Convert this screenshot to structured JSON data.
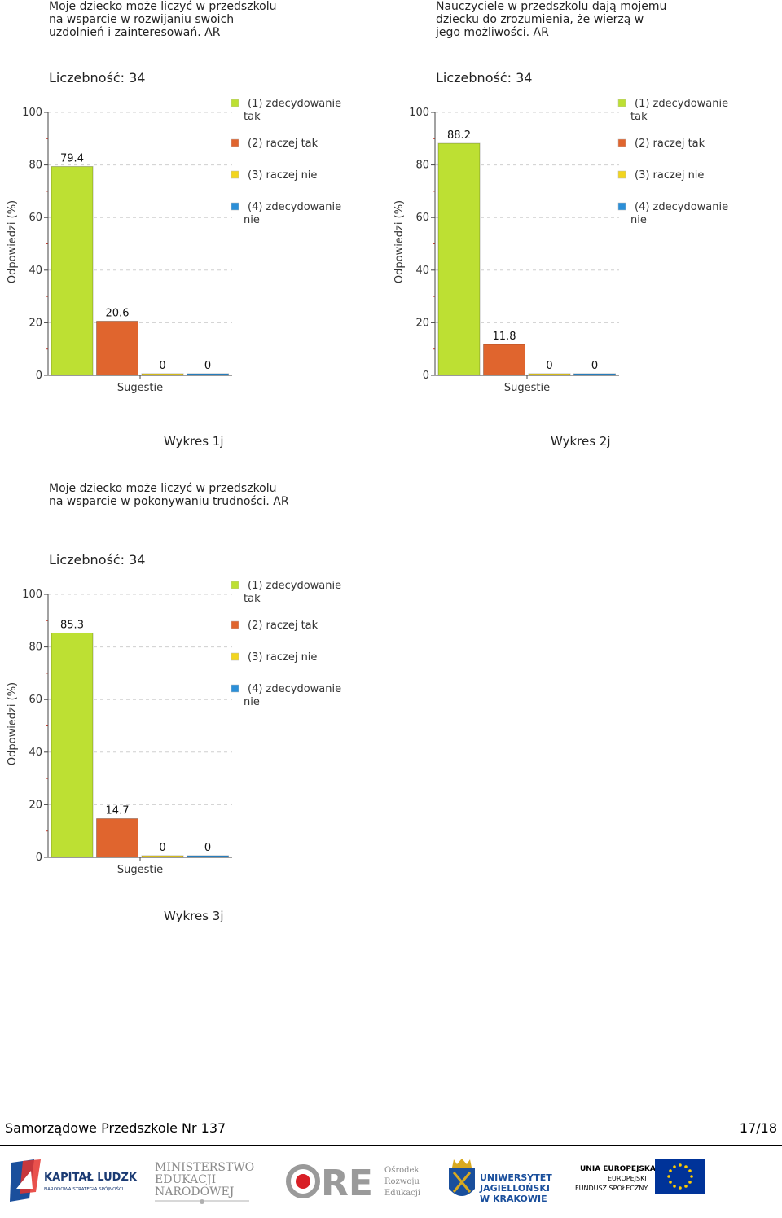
{
  "charts": [
    {
      "id": "chart1",
      "title": "Moje dziecko może liczyć w przedszkolu\nna wsparcie w rozwijaniu swoich\nuzdolnień i zainteresowań. AR",
      "count_label": "Liczebność: 34",
      "caption": "Wykres 1j"
    },
    {
      "id": "chart2",
      "title": "Nauczyciele w przedszkolu dają mojemu\ndziecku do  zrozumienia, że wierzą w\njego możliwości. AR",
      "count_label": "Liczebność: 34",
      "caption": "Wykres 2j"
    },
    {
      "id": "chart3",
      "title": "Moje dziecko może liczyć w przedszkolu\nna wsparcie w pokonywaniu trudności. AR",
      "count_label": "Liczebność: 34",
      "caption": "Wykres 3j"
    }
  ],
  "chart_data": [
    {
      "type": "bar",
      "categories": [
        "Sugestie"
      ],
      "series": [
        {
          "name": "(1) zdecydowanie tak",
          "values": [
            79.4
          ],
          "color": "#bde033"
        },
        {
          "name": "(2) raczej tak",
          "values": [
            20.6
          ],
          "color": "#e0652e"
        },
        {
          "name": "(3) raczej nie",
          "values": [
            0
          ],
          "color": "#f2d51f"
        },
        {
          "name": "(4) zdecydowanie nie",
          "values": [
            0
          ],
          "color": "#2b8fd8"
        }
      ],
      "data_labels": [
        "79.4",
        "20.6",
        "0",
        "0"
      ],
      "xlabel": "Sugestie",
      "ylabel": "Odpowiedzi (%)",
      "ylim": [
        0,
        100
      ],
      "yticks": [
        "0",
        "20",
        "40",
        "60",
        "80",
        "100"
      ],
      "grid": true,
      "legend_position": "right",
      "legend_labels": [
        [
          "(1) zdecydowanie",
          "tak"
        ],
        [
          "(2) raczej tak"
        ],
        [
          "(3) raczej nie"
        ],
        [
          "(4) zdecydowanie",
          "nie"
        ]
      ]
    },
    {
      "type": "bar",
      "categories": [
        "Sugestie"
      ],
      "series": [
        {
          "name": "(1) zdecydowanie tak",
          "values": [
            88.2
          ],
          "color": "#bde033"
        },
        {
          "name": "(2) raczej tak",
          "values": [
            11.8
          ],
          "color": "#e0652e"
        },
        {
          "name": "(3) raczej nie",
          "values": [
            0
          ],
          "color": "#f2d51f"
        },
        {
          "name": "(4) zdecydowanie nie",
          "values": [
            0
          ],
          "color": "#2b8fd8"
        }
      ],
      "data_labels": [
        "88.2",
        "11.8",
        "0",
        "0"
      ],
      "xlabel": "Sugestie",
      "ylabel": "Odpowiedzi (%)",
      "ylim": [
        0,
        100
      ],
      "yticks": [
        "0",
        "20",
        "40",
        "60",
        "80",
        "100"
      ],
      "grid": true,
      "legend_position": "right",
      "legend_labels": [
        [
          "(1) zdecydowanie",
          "tak"
        ],
        [
          "(2) raczej tak"
        ],
        [
          "(3) raczej nie"
        ],
        [
          "(4) zdecydowanie",
          "nie"
        ]
      ]
    },
    {
      "type": "bar",
      "categories": [
        "Sugestie"
      ],
      "series": [
        {
          "name": "(1) zdecydowanie tak",
          "values": [
            85.3
          ],
          "color": "#bde033"
        },
        {
          "name": "(2) raczej tak",
          "values": [
            14.7
          ],
          "color": "#e0652e"
        },
        {
          "name": "(3) raczej nie",
          "values": [
            0
          ],
          "color": "#f2d51f"
        },
        {
          "name": "(4) zdecydowanie nie",
          "values": [
            0
          ],
          "color": "#2b8fd8"
        }
      ],
      "data_labels": [
        "85.3",
        "14.7",
        "0",
        "0"
      ],
      "xlabel": "Sugestie",
      "ylabel": "Odpowiedzi (%)",
      "ylim": [
        0,
        100
      ],
      "yticks": [
        "0",
        "20",
        "40",
        "60",
        "80",
        "100"
      ],
      "grid": true,
      "legend_position": "right",
      "legend_labels": [
        [
          "(1) zdecydowanie",
          "tak"
        ],
        [
          "(2) raczej tak"
        ],
        [
          "(3) raczej nie"
        ],
        [
          "(4) zdecydowanie",
          "nie"
        ]
      ]
    }
  ],
  "footer": {
    "school_name": "Samorządowe Przedszkole Nr 137",
    "page_number": "17/18"
  },
  "logos": {
    "kapital": {
      "line1": "KAPITAŁ LUDZKI",
      "line2": "NARODOWA STRATEGIA SPÓJNOŚCI"
    },
    "ministerstwo": {
      "line1": "MINISTERSTWO",
      "line2": "EDUKACJI",
      "line3": "NARODOWEJ"
    },
    "ore": {
      "mark": "ORE",
      "line1": "Ośrodek",
      "line2": "Rozwoju",
      "line3": "Edukacji"
    },
    "uj": {
      "line1": "UNIWERSYTET",
      "line2": "JAGIELLOŃSKI",
      "line3": "W KRAKOWIE"
    },
    "ue": {
      "line1": "UNIA EUROPEJSKA",
      "line2": "EUROPEJSKI",
      "line3": "FUNDUSZ SPOŁECZNY"
    }
  }
}
